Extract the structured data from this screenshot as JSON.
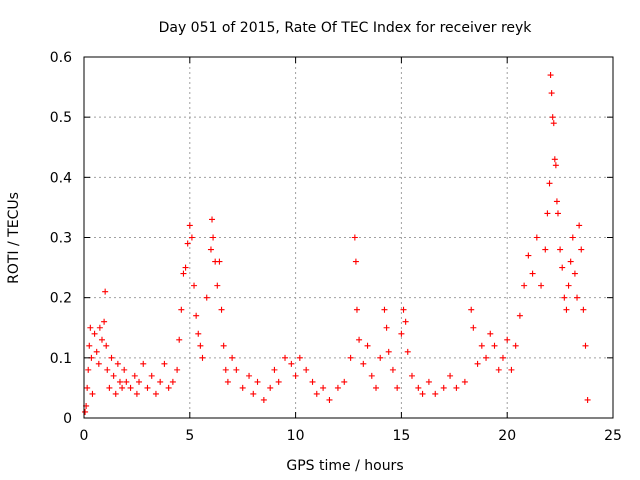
{
  "chart_data": {
    "type": "scatter",
    "title": "Day 051 of 2015, Rate Of TEC Index for receiver reyk",
    "xlabel": "GPS time / hours",
    "ylabel": "ROTI / TECUs",
    "xlim": [
      0,
      25
    ],
    "ylim": [
      0,
      0.6
    ],
    "xticks": [
      0,
      5,
      10,
      15,
      20,
      25
    ],
    "yticks": [
      0,
      0.1,
      0.2,
      0.3,
      0.4,
      0.5,
      0.6
    ],
    "xtick_labels": [
      "0",
      "5",
      "10",
      "15",
      "20",
      "25"
    ],
    "ytick_labels": [
      "0",
      "0.1",
      "0.2",
      "0.3",
      "0.4",
      "0.5",
      "0.6"
    ],
    "grid": true,
    "marker": "+",
    "color": "#ff0000",
    "series": [
      {
        "name": "ROTI",
        "points": [
          [
            0.05,
            0.01
          ],
          [
            0.1,
            0.02
          ],
          [
            0.15,
            0.05
          ],
          [
            0.2,
            0.08
          ],
          [
            0.25,
            0.12
          ],
          [
            0.3,
            0.15
          ],
          [
            0.35,
            0.1
          ],
          [
            0.4,
            0.04
          ],
          [
            0.5,
            0.14
          ],
          [
            0.6,
            0.11
          ],
          [
            0.7,
            0.09
          ],
          [
            0.75,
            0.15
          ],
          [
            0.85,
            0.13
          ],
          [
            0.95,
            0.16
          ],
          [
            1.0,
            0.21
          ],
          [
            1.05,
            0.12
          ],
          [
            1.1,
            0.08
          ],
          [
            1.2,
            0.05
          ],
          [
            1.3,
            0.1
          ],
          [
            1.4,
            0.07
          ],
          [
            1.5,
            0.04
          ],
          [
            1.6,
            0.09
          ],
          [
            1.7,
            0.06
          ],
          [
            1.8,
            0.05
          ],
          [
            1.9,
            0.08
          ],
          [
            2.0,
            0.06
          ],
          [
            2.2,
            0.05
          ],
          [
            2.4,
            0.07
          ],
          [
            2.5,
            0.04
          ],
          [
            2.6,
            0.06
          ],
          [
            2.8,
            0.09
          ],
          [
            3.0,
            0.05
          ],
          [
            3.2,
            0.07
          ],
          [
            3.4,
            0.04
          ],
          [
            3.6,
            0.06
          ],
          [
            3.8,
            0.09
          ],
          [
            4.0,
            0.05
          ],
          [
            4.2,
            0.06
          ],
          [
            4.4,
            0.08
          ],
          [
            4.5,
            0.13
          ],
          [
            4.6,
            0.18
          ],
          [
            4.7,
            0.24
          ],
          [
            4.8,
            0.25
          ],
          [
            4.9,
            0.29
          ],
          [
            5.0,
            0.32
          ],
          [
            5.1,
            0.3
          ],
          [
            5.2,
            0.22
          ],
          [
            5.3,
            0.17
          ],
          [
            5.4,
            0.14
          ],
          [
            5.5,
            0.12
          ],
          [
            5.6,
            0.1
          ],
          [
            5.8,
            0.2
          ],
          [
            6.0,
            0.28
          ],
          [
            6.05,
            0.33
          ],
          [
            6.1,
            0.3
          ],
          [
            6.2,
            0.26
          ],
          [
            6.3,
            0.22
          ],
          [
            6.4,
            0.26
          ],
          [
            6.5,
            0.18
          ],
          [
            6.6,
            0.12
          ],
          [
            6.7,
            0.08
          ],
          [
            6.8,
            0.06
          ],
          [
            7.0,
            0.1
          ],
          [
            7.2,
            0.08
          ],
          [
            7.5,
            0.05
          ],
          [
            7.8,
            0.07
          ],
          [
            8.0,
            0.04
          ],
          [
            8.2,
            0.06
          ],
          [
            8.5,
            0.03
          ],
          [
            8.8,
            0.05
          ],
          [
            9.0,
            0.08
          ],
          [
            9.2,
            0.06
          ],
          [
            9.5,
            0.1
          ],
          [
            9.8,
            0.09
          ],
          [
            10.0,
            0.07
          ],
          [
            10.2,
            0.1
          ],
          [
            10.5,
            0.08
          ],
          [
            10.8,
            0.06
          ],
          [
            11.0,
            0.04
          ],
          [
            11.3,
            0.05
          ],
          [
            11.6,
            0.03
          ],
          [
            12.0,
            0.05
          ],
          [
            12.3,
            0.06
          ],
          [
            12.6,
            0.1
          ],
          [
            12.8,
            0.3
          ],
          [
            12.85,
            0.26
          ],
          [
            12.9,
            0.18
          ],
          [
            13.0,
            0.13
          ],
          [
            13.2,
            0.09
          ],
          [
            13.4,
            0.12
          ],
          [
            13.6,
            0.07
          ],
          [
            13.8,
            0.05
          ],
          [
            14.0,
            0.1
          ],
          [
            14.2,
            0.18
          ],
          [
            14.3,
            0.15
          ],
          [
            14.4,
            0.11
          ],
          [
            14.6,
            0.08
          ],
          [
            14.8,
            0.05
          ],
          [
            15.0,
            0.14
          ],
          [
            15.1,
            0.18
          ],
          [
            15.2,
            0.16
          ],
          [
            15.3,
            0.11
          ],
          [
            15.5,
            0.07
          ],
          [
            15.8,
            0.05
          ],
          [
            16.0,
            0.04
          ],
          [
            16.3,
            0.06
          ],
          [
            16.6,
            0.04
          ],
          [
            17.0,
            0.05
          ],
          [
            17.3,
            0.07
          ],
          [
            17.6,
            0.05
          ],
          [
            18.0,
            0.06
          ],
          [
            18.3,
            0.18
          ],
          [
            18.4,
            0.15
          ],
          [
            18.6,
            0.09
          ],
          [
            18.8,
            0.12
          ],
          [
            19.0,
            0.1
          ],
          [
            19.2,
            0.14
          ],
          [
            19.4,
            0.12
          ],
          [
            19.6,
            0.08
          ],
          [
            19.8,
            0.1
          ],
          [
            20.0,
            0.13
          ],
          [
            20.2,
            0.08
          ],
          [
            20.4,
            0.12
          ],
          [
            20.6,
            0.17
          ],
          [
            20.8,
            0.22
          ],
          [
            21.0,
            0.27
          ],
          [
            21.2,
            0.24
          ],
          [
            21.4,
            0.3
          ],
          [
            21.6,
            0.22
          ],
          [
            21.8,
            0.28
          ],
          [
            21.9,
            0.34
          ],
          [
            22.0,
            0.39
          ],
          [
            22.05,
            0.57
          ],
          [
            22.1,
            0.54
          ],
          [
            22.15,
            0.5
          ],
          [
            22.2,
            0.49
          ],
          [
            22.25,
            0.43
          ],
          [
            22.3,
            0.42
          ],
          [
            22.35,
            0.36
          ],
          [
            22.4,
            0.34
          ],
          [
            22.5,
            0.28
          ],
          [
            22.6,
            0.25
          ],
          [
            22.7,
            0.2
          ],
          [
            22.8,
            0.18
          ],
          [
            22.9,
            0.22
          ],
          [
            23.0,
            0.26
          ],
          [
            23.1,
            0.3
          ],
          [
            23.2,
            0.24
          ],
          [
            23.3,
            0.2
          ],
          [
            23.4,
            0.32
          ],
          [
            23.5,
            0.28
          ],
          [
            23.6,
            0.18
          ],
          [
            23.7,
            0.12
          ],
          [
            23.8,
            0.03
          ]
        ]
      }
    ]
  }
}
